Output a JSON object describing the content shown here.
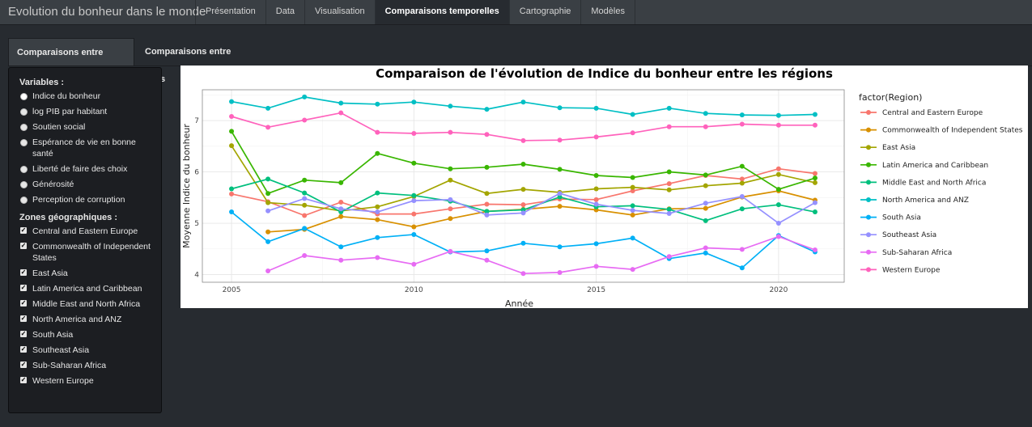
{
  "app": {
    "title": "Evolution du bonheur dans le monde"
  },
  "nav": {
    "items": [
      {
        "label": "Présentation"
      },
      {
        "label": "Data"
      },
      {
        "label": "Visualisation"
      },
      {
        "label": "Comparaisons temporelles"
      },
      {
        "label": "Cartographie"
      },
      {
        "label": "Modèles"
      }
    ],
    "active": "Comparaisons temporelles"
  },
  "subtabs": {
    "regions": "Comparaisons entre régions",
    "countries": "Comparaisons entre pays",
    "active": "Comparaisons entre régions"
  },
  "sidebar": {
    "variables_title": "Variables :",
    "variables": [
      "Indice du bonheur",
      "log PIB par habitant",
      "Soutien social",
      "Espérance de vie en bonne santé",
      "Liberté de faire des choix",
      "Générosité",
      "Perception de corruption"
    ],
    "selected_variable": "Indice du bonheur",
    "zones_title": "Zones géographiques :",
    "zones": [
      "Central and Eastern Europe",
      "Commonwealth of Independent States",
      "East Asia",
      "Latin America and Caribbean",
      "Middle East and North Africa",
      "North America and ANZ",
      "South Asia",
      "Southeast Asia",
      "Sub-Saharan Africa",
      "Western Europe"
    ],
    "zones_checked": true
  },
  "chart_data": {
    "type": "line",
    "title": "Comparaison de l'évolution de Indice du bonheur entre les régions",
    "xlabel": "Année",
    "ylabel": "Moyenne Indice du bonheur",
    "legend_title": "factor(Region)",
    "legend_position": "right",
    "grid": true,
    "xlim": [
      2004.2,
      2021.8
    ],
    "ylim": [
      3.85,
      7.6
    ],
    "xticks": [
      2005,
      2010,
      2015,
      2020
    ],
    "yticks": [
      4,
      5,
      6,
      7
    ],
    "series": [
      {
        "name": "Central and Eastern Europe",
        "color": "#F8766D",
        "x": [
          2005,
          2006,
          2007,
          2008,
          2009,
          2010,
          2011,
          2012,
          2013,
          2014,
          2015,
          2016,
          2017,
          2018,
          2019,
          2020,
          2021
        ],
        "y": [
          5.57,
          5.42,
          5.15,
          5.41,
          5.18,
          5.18,
          5.28,
          5.37,
          5.36,
          5.47,
          5.46,
          5.63,
          5.77,
          5.93,
          5.86,
          6.06,
          5.97
        ]
      },
      {
        "name": "Commonwealth of Independent States",
        "color": "#D89000",
        "x": [
          2006,
          2007,
          2008,
          2009,
          2010,
          2011,
          2012,
          2013,
          2014,
          2015,
          2016,
          2017,
          2018,
          2019,
          2020,
          2021
        ],
        "y": [
          4.83,
          4.88,
          5.13,
          5.07,
          4.93,
          5.09,
          5.23,
          5.27,
          5.33,
          5.26,
          5.16,
          5.28,
          5.29,
          5.51,
          5.63,
          5.45
        ]
      },
      {
        "name": "East Asia",
        "color": "#A3A500",
        "x": [
          2005,
          2006,
          2007,
          2008,
          2009,
          2010,
          2011,
          2012,
          2013,
          2014,
          2015,
          2016,
          2017,
          2018,
          2019,
          2020,
          2021
        ],
        "y": [
          6.51,
          5.4,
          5.35,
          5.24,
          5.32,
          5.52,
          5.84,
          5.58,
          5.66,
          5.6,
          5.67,
          5.7,
          5.65,
          5.73,
          5.78,
          5.95,
          5.79
        ]
      },
      {
        "name": "Latin America and Caribbean",
        "color": "#39B600",
        "x": [
          2005,
          2006,
          2007,
          2008,
          2009,
          2010,
          2011,
          2012,
          2013,
          2014,
          2015,
          2016,
          2017,
          2018,
          2019,
          2020,
          2021
        ],
        "y": [
          6.79,
          5.58,
          5.84,
          5.79,
          6.36,
          6.17,
          6.06,
          6.09,
          6.15,
          6.05,
          5.93,
          5.89,
          6.0,
          5.94,
          6.11,
          5.66,
          5.88
        ]
      },
      {
        "name": "Middle East and North Africa",
        "color": "#00BF7D",
        "x": [
          2005,
          2006,
          2007,
          2008,
          2009,
          2010,
          2011,
          2012,
          2013,
          2014,
          2015,
          2016,
          2017,
          2018,
          2019,
          2020,
          2021
        ],
        "y": [
          5.67,
          5.86,
          5.59,
          5.22,
          5.59,
          5.54,
          5.43,
          5.23,
          5.26,
          5.51,
          5.32,
          5.34,
          5.27,
          5.05,
          5.28,
          5.36,
          5.22
        ]
      },
      {
        "name": "North America and ANZ",
        "color": "#00BFC4",
        "x": [
          2005,
          2006,
          2007,
          2008,
          2009,
          2010,
          2011,
          2012,
          2013,
          2014,
          2015,
          2016,
          2017,
          2018,
          2019,
          2020,
          2021
        ],
        "y": [
          7.37,
          7.24,
          7.46,
          7.34,
          7.32,
          7.36,
          7.28,
          7.22,
          7.36,
          7.25,
          7.24,
          7.12,
          7.24,
          7.14,
          7.11,
          7.1,
          7.12
        ]
      },
      {
        "name": "South Asia",
        "color": "#00B0F6",
        "x": [
          2005,
          2006,
          2007,
          2008,
          2009,
          2010,
          2011,
          2012,
          2013,
          2014,
          2015,
          2016,
          2017,
          2018,
          2019,
          2020,
          2021
        ],
        "y": [
          5.22,
          4.64,
          4.9,
          4.54,
          4.72,
          4.78,
          4.44,
          4.46,
          4.61,
          4.54,
          4.6,
          4.71,
          4.31,
          4.42,
          4.13,
          4.76,
          4.44
        ]
      },
      {
        "name": "Southeast Asia",
        "color": "#9590FF",
        "x": [
          2006,
          2007,
          2008,
          2009,
          2010,
          2011,
          2012,
          2013,
          2014,
          2015,
          2016,
          2017,
          2018,
          2019,
          2020,
          2021
        ],
        "y": [
          5.24,
          5.48,
          5.28,
          5.22,
          5.44,
          5.46,
          5.16,
          5.2,
          5.58,
          5.37,
          5.25,
          5.19,
          5.39,
          5.52,
          5.0,
          5.4
        ]
      },
      {
        "name": "Sub-Saharan Africa",
        "color": "#E76BF3",
        "x": [
          2006,
          2007,
          2008,
          2009,
          2010,
          2011,
          2012,
          2013,
          2014,
          2015,
          2016,
          2017,
          2018,
          2019,
          2020,
          2021
        ],
        "y": [
          4.07,
          4.37,
          4.28,
          4.33,
          4.2,
          4.45,
          4.28,
          4.02,
          4.04,
          4.16,
          4.1,
          4.35,
          4.52,
          4.49,
          4.74,
          4.48
        ]
      },
      {
        "name": "Western Europe",
        "color": "#FF62BC",
        "x": [
          2005,
          2006,
          2007,
          2008,
          2009,
          2010,
          2011,
          2012,
          2013,
          2014,
          2015,
          2016,
          2017,
          2018,
          2019,
          2020,
          2021
        ],
        "y": [
          7.08,
          6.87,
          7.01,
          7.15,
          6.77,
          6.75,
          6.77,
          6.73,
          6.61,
          6.62,
          6.68,
          6.76,
          6.88,
          6.88,
          6.93,
          6.91,
          6.91
        ]
      }
    ]
  }
}
